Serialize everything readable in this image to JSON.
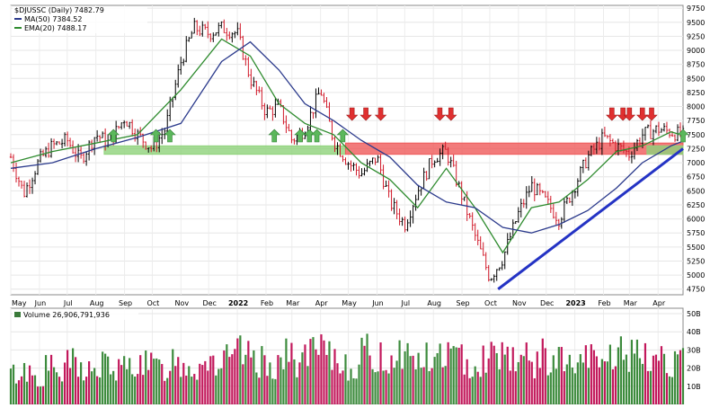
{
  "chart_data": [
    {
      "type": "candlestick",
      "legend": {
        "symbol_line": "$DJUSSC (Daily) 7482.79",
        "ma_line": "MA(50) 7384.52",
        "ema_line": "EMA(20) 7488.17",
        "colors": {
          "price": "#000000",
          "ma": "#2b3a8c",
          "ema": "#2e8b2e"
        }
      },
      "y_ticks": [
        "9750",
        "9500",
        "9250",
        "9000",
        "8750",
        "8500",
        "8250",
        "8000",
        "7750",
        "7500",
        "7250",
        "7000",
        "6750",
        "6500",
        "6250",
        "6000",
        "5750",
        "5500",
        "5250",
        "5000",
        "4750"
      ],
      "ylim": [
        4650,
        9800
      ],
      "x_ticks": [
        "May",
        "Jun",
        "Jul",
        "Aug",
        "Sep",
        "Oct",
        "Nov",
        "Dec",
        "2022",
        "Feb",
        "Mar",
        "Apr",
        "May",
        "Jun",
        "Jul",
        "Aug",
        "Sep",
        "Oct",
        "Nov",
        "Dec",
        "2023",
        "Feb",
        "Mar",
        "Apr"
      ],
      "price_path": [
        [
          "2021-05-01",
          7100
        ],
        [
          "2021-05-15",
          6450
        ],
        [
          "2021-06-01",
          7050
        ],
        [
          "2021-06-15",
          7300
        ],
        [
          "2021-07-01",
          7400
        ],
        [
          "2021-07-15",
          7050
        ],
        [
          "2021-08-01",
          7500
        ],
        [
          "2021-08-15",
          7350
        ],
        [
          "2021-09-01",
          7800
        ],
        [
          "2021-09-15",
          7500
        ],
        [
          "2021-10-01",
          7250
        ],
        [
          "2021-10-15",
          7600
        ],
        [
          "2021-11-01",
          8800
        ],
        [
          "2021-11-15",
          9400
        ],
        [
          "2021-12-01",
          9300
        ],
        [
          "2021-12-15",
          9400
        ],
        [
          "2022-01-01",
          9300
        ],
        [
          "2022-01-15",
          8500
        ],
        [
          "2022-02-01",
          7900
        ],
        [
          "2022-02-15",
          8000
        ],
        [
          "2022-03-01",
          7400
        ],
        [
          "2022-03-15",
          7600
        ],
        [
          "2022-04-01",
          8300
        ],
        [
          "2022-04-15",
          7400
        ],
        [
          "2022-05-01",
          7000
        ],
        [
          "2022-05-15",
          6800
        ],
        [
          "2022-06-01",
          7100
        ],
        [
          "2022-06-15",
          6300
        ],
        [
          "2022-07-01",
          5900
        ],
        [
          "2022-07-15",
          6500
        ],
        [
          "2022-08-01",
          7100
        ],
        [
          "2022-08-15",
          7200
        ],
        [
          "2022-09-01",
          6400
        ],
        [
          "2022-09-15",
          5700
        ],
        [
          "2022-10-01",
          4950
        ],
        [
          "2022-10-15",
          5300
        ],
        [
          "2022-11-01",
          6100
        ],
        [
          "2022-11-15",
          6600
        ],
        [
          "2022-12-01",
          6300
        ],
        [
          "2022-12-15",
          6000
        ],
        [
          "2023-01-01",
          6600
        ],
        [
          "2023-01-15",
          7100
        ],
        [
          "2023-02-01",
          7450
        ],
        [
          "2023-02-15",
          7300
        ],
        [
          "2023-03-01",
          7150
        ],
        [
          "2023-03-15",
          7500
        ],
        [
          "2023-04-01",
          7600
        ],
        [
          "2023-04-15",
          7550
        ],
        [
          "2023-04-28",
          7480
        ]
      ],
      "ma50_path": [
        [
          "2021-05-01",
          6900
        ],
        [
          "2021-06-15",
          7000
        ],
        [
          "2021-08-01",
          7250
        ],
        [
          "2021-09-15",
          7450
        ],
        [
          "2021-11-01",
          7700
        ],
        [
          "2021-12-15",
          8800
        ],
        [
          "2022-01-15",
          9150
        ],
        [
          "2022-02-15",
          8650
        ],
        [
          "2022-03-15",
          8050
        ],
        [
          "2022-04-15",
          7750
        ],
        [
          "2022-05-15",
          7400
        ],
        [
          "2022-06-15",
          7100
        ],
        [
          "2022-07-15",
          6600
        ],
        [
          "2022-08-15",
          6300
        ],
        [
          "2022-09-15",
          6200
        ],
        [
          "2022-10-15",
          5850
        ],
        [
          "2022-11-15",
          5750
        ],
        [
          "2022-12-15",
          5900
        ],
        [
          "2023-01-15",
          6150
        ],
        [
          "2023-02-15",
          6550
        ],
        [
          "2023-03-15",
          7000
        ],
        [
          "2023-04-15",
          7300
        ],
        [
          "2023-04-28",
          7385
        ]
      ],
      "ema20_path": [
        [
          "2021-05-01",
          7000
        ],
        [
          "2021-06-15",
          7200
        ],
        [
          "2021-08-01",
          7350
        ],
        [
          "2021-09-15",
          7500
        ],
        [
          "2021-11-01",
          8300
        ],
        [
          "2021-12-15",
          9200
        ],
        [
          "2022-01-15",
          8900
        ],
        [
          "2022-02-15",
          8050
        ],
        [
          "2022-03-15",
          7700
        ],
        [
          "2022-04-15",
          7500
        ],
        [
          "2022-05-15",
          7000
        ],
        [
          "2022-06-15",
          6700
        ],
        [
          "2022-07-15",
          6200
        ],
        [
          "2022-08-15",
          6900
        ],
        [
          "2022-09-15",
          6200
        ],
        [
          "2022-10-15",
          5400
        ],
        [
          "2022-11-15",
          6200
        ],
        [
          "2022-12-15",
          6300
        ],
        [
          "2023-01-15",
          6700
        ],
        [
          "2023-02-15",
          7200
        ],
        [
          "2023-03-15",
          7300
        ],
        [
          "2023-04-15",
          7550
        ],
        [
          "2023-04-28",
          7488
        ]
      ],
      "support_zone": {
        "from": "2021-08-10",
        "to": "2022-04-28",
        "low": 7150,
        "high": 7300,
        "color": "#8fd27a"
      },
      "resistance_zone": {
        "from": "2022-04-28",
        "to": "2023-04-28",
        "low": 7150,
        "high": 7350,
        "color": "#ef5a5a"
      },
      "lower_right_zone": {
        "from": "2023-03-20",
        "to": "2023-04-28",
        "low": 7150,
        "high": 7300,
        "color": "#8fd27a"
      },
      "trendline": [
        [
          "2022-10-10",
          4750
        ],
        [
          "2023-04-28",
          7250
        ]
      ],
      "up_arrows": [
        "2021-08-20",
        "2021-10-05",
        "2021-10-20",
        "2022-02-10",
        "2022-03-10",
        "2022-03-20",
        "2022-03-28",
        "2022-04-25",
        "2023-04-28"
      ],
      "down_arrows": [
        "2022-05-05",
        "2022-05-20",
        "2022-06-05",
        "2022-08-08",
        "2022-08-20",
        "2023-02-10",
        "2023-02-22",
        "2023-03-01",
        "2023-03-15",
        "2023-03-25"
      ]
    },
    {
      "type": "bar",
      "legend": {
        "volume_line": "Volume 26,906,791,936"
      },
      "y_ticks": [
        "50B",
        "40B",
        "30B",
        "20B",
        "10B"
      ],
      "ylim": [
        0,
        50
      ],
      "series": [
        {
          "name": "Volume",
          "values_profile": [
            18,
            20,
            16,
            22,
            18,
            25,
            21,
            19,
            24,
            20,
            22,
            26,
            23,
            21,
            27,
            24,
            22,
            28,
            25,
            26,
            30,
            27,
            25,
            24,
            28,
            26,
            29,
            31,
            27,
            25,
            23,
            30,
            28,
            26,
            32,
            29,
            27,
            25,
            31,
            28,
            26,
            24,
            29,
            33,
            30,
            27,
            25,
            28,
            26,
            24,
            22,
            27,
            25,
            29,
            31,
            28,
            26,
            30,
            27,
            24
          ]
        }
      ]
    }
  ]
}
